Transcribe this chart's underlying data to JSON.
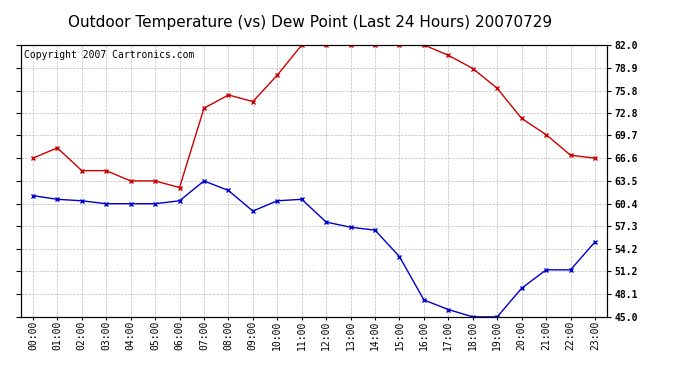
{
  "title": "Outdoor Temperature (vs) Dew Point (Last 24 Hours) 20070729",
  "copyright": "Copyright 2007 Cartronics.com",
  "x_labels": [
    "00:00",
    "01:00",
    "02:00",
    "03:00",
    "04:00",
    "05:00",
    "06:00",
    "07:00",
    "08:00",
    "09:00",
    "10:00",
    "11:00",
    "12:00",
    "13:00",
    "14:00",
    "15:00",
    "16:00",
    "17:00",
    "18:00",
    "19:00",
    "20:00",
    "21:00",
    "22:00",
    "23:00"
  ],
  "temp_data": [
    66.6,
    68.0,
    64.9,
    64.9,
    63.5,
    63.5,
    62.6,
    73.4,
    75.2,
    74.3,
    77.9,
    82.0,
    82.0,
    82.0,
    82.0,
    82.0,
    82.0,
    80.6,
    78.8,
    76.1,
    72.0,
    69.8,
    67.0,
    66.6
  ],
  "dew_data": [
    61.5,
    61.0,
    60.8,
    60.4,
    60.4,
    60.4,
    60.8,
    63.5,
    62.2,
    59.4,
    60.8,
    61.0,
    57.9,
    57.2,
    56.8,
    53.2,
    47.3,
    46.0,
    45.0,
    45.0,
    48.9,
    51.4,
    51.4,
    55.2
  ],
  "temp_color": "#cc0000",
  "dew_color": "#0000cc",
  "ylim_min": 45.0,
  "ylim_max": 82.0,
  "yticks": [
    45.0,
    48.1,
    51.2,
    54.2,
    57.3,
    60.4,
    63.5,
    66.6,
    69.7,
    72.8,
    75.8,
    78.9,
    82.0
  ],
  "bg_color": "#ffffff",
  "grid_color": "#bbbbbb",
  "title_fontsize": 11,
  "copyright_fontsize": 7,
  "tick_fontsize": 7,
  "marker_size": 3,
  "line_width": 1.0
}
